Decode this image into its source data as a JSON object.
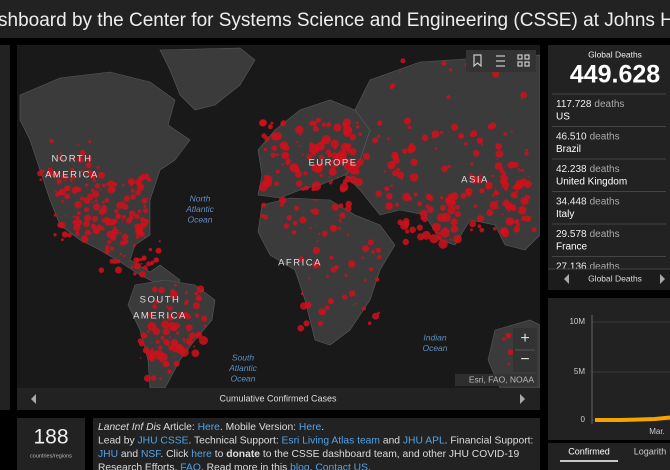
{
  "header": {
    "title": "shboard by the Center for Systems Science and Engineering (CSSE) at Johns Hopkins"
  },
  "map": {
    "labels": [
      {
        "lines": [
          "NORTH",
          "AMERICA"
        ],
        "style": "continent"
      },
      {
        "lines": [
          "EUROPE"
        ],
        "style": "continent"
      },
      {
        "lines": [
          "ASIA"
        ],
        "style": "continent"
      },
      {
        "lines": [
          "AFRICA"
        ],
        "style": "continent"
      },
      {
        "lines": [
          "SOUTH",
          "AMERICA"
        ],
        "style": "continent"
      },
      {
        "lines": [
          "North",
          "Atlantic",
          "Ocean"
        ],
        "style": "ocean"
      },
      {
        "lines": [
          "South",
          "Atlantic",
          "Ocean"
        ],
        "style": "ocean"
      },
      {
        "lines": [
          "Indian",
          "Ocean"
        ],
        "style": "ocean"
      }
    ],
    "attribution": "Esri, FAO, NOAA",
    "zoom_in": "+",
    "zoom_out": "−",
    "footer": "Cumulative Confirmed Cases"
  },
  "countries": {
    "count": "188",
    "label": "countries/regions"
  },
  "info": {
    "lines": [
      [
        {
          "text": "Lancet Inf Dis",
          "link": false,
          "italic": true
        },
        {
          "text": " Article: ",
          "link": false
        },
        {
          "text": "Here",
          "link": true
        },
        {
          "text": ". Mobile Version: ",
          "link": false
        },
        {
          "text": "Here",
          "link": true
        },
        {
          "text": ".",
          "link": false
        }
      ],
      [
        {
          "text": "Lead by ",
          "link": false
        },
        {
          "text": "JHU CSSE",
          "link": true
        },
        {
          "text": ". Technical Support: ",
          "link": false
        },
        {
          "text": "Esri Living Atlas team",
          "link": true
        },
        {
          "text": " and ",
          "link": false
        },
        {
          "text": "JHU APL",
          "link": true
        },
        {
          "text": ". Financial Support:",
          "link": false
        }
      ],
      [
        {
          "text": "JHU",
          "link": true
        },
        {
          "text": " and ",
          "link": false
        },
        {
          "text": "NSF",
          "link": true
        },
        {
          "text": ". Click ",
          "link": false
        },
        {
          "text": "here",
          "link": true
        },
        {
          "text": " to ",
          "link": false
        },
        {
          "text": "donate",
          "link": false,
          "bold": true
        },
        {
          "text": " to the CSSE dashboard team, and other JHU COVID-19",
          "link": false
        }
      ],
      [
        {
          "text": "Research Efforts. ",
          "link": false
        },
        {
          "text": "FAQ",
          "link": true
        },
        {
          "text": ". Read more in this ",
          "link": false
        },
        {
          "text": "blog",
          "link": true
        },
        {
          "text": ". ",
          "link": false
        },
        {
          "text": "Contact US",
          "link": true
        },
        {
          "text": ".",
          "link": false
        }
      ]
    ]
  },
  "deaths": {
    "title": "Global Deaths",
    "total": "449.628",
    "items": [
      {
        "value": "117.728",
        "unit": "deaths",
        "name": "US"
      },
      {
        "value": "46.510",
        "unit": "deaths",
        "name": "Brazil"
      },
      {
        "value": "42.238",
        "unit": "deaths",
        "name": "United Kingdom"
      },
      {
        "value": "34.448",
        "unit": "deaths",
        "name": "Italy"
      },
      {
        "value": "29.578",
        "unit": "deaths",
        "name": "France"
      },
      {
        "value": "27.136",
        "unit": "deaths"
      }
    ],
    "footer": "Global Deaths"
  },
  "chart": {
    "yticks": [
      "10M",
      "5M",
      "0"
    ],
    "xticks": [
      "Mar."
    ],
    "tabs": [
      "Confirmed",
      "Logarith"
    ]
  }
}
